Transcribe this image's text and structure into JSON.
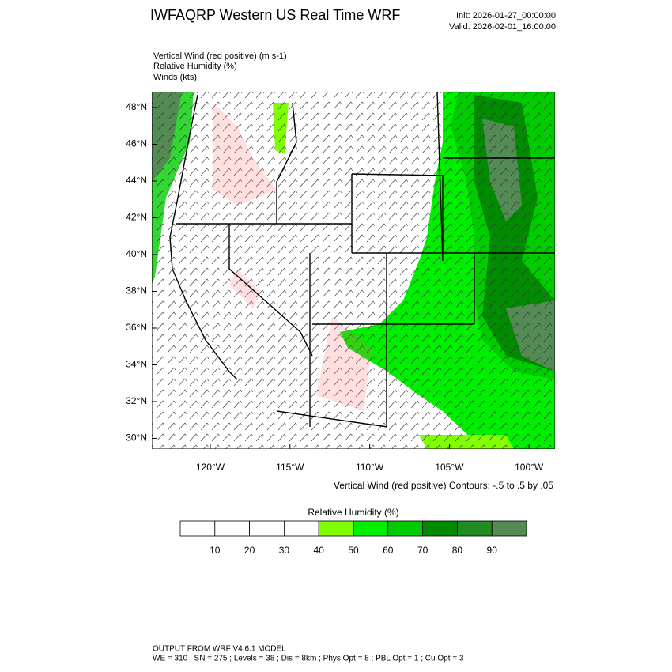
{
  "header": {
    "title": "IWFAQRP Western US Real Time WRF",
    "init": "Init: 2026-01-27_00:00:00",
    "valid": "Valid: 2026-02-01_16:00:00"
  },
  "fields": [
    "Vertical Wind (red positive)   (m s-1)",
    "Relative Humidity   (%)",
    "Winds   (kts)"
  ],
  "map": {
    "lat_labels": [
      "48°N",
      "46°N",
      "44°N",
      "42°N",
      "40°N",
      "38°N",
      "36°N",
      "34°N",
      "32°N",
      "30°N"
    ],
    "lon_labels": [
      "120°W",
      "115°W",
      "110°W",
      "105°W",
      "100°W"
    ],
    "contour_note": "Vertical Wind (red positive) Contours: -.5 to .5 by .05"
  },
  "colorbar": {
    "title": "Relative Humidity  (%)",
    "labels": [
      10,
      20,
      30,
      40,
      50,
      60,
      70,
      80,
      90
    ],
    "colors": [
      "#ffffff",
      "#ffffff",
      "#ffffff",
      "#ffffff",
      "#80ff00",
      "#00ee00",
      "#00cd00",
      "#008b00",
      "#228b22",
      "#548b54"
    ]
  },
  "footer": {
    "line1": "OUTPUT FROM WRF V4.6.1 MODEL",
    "line2": "WE = 310 ; SN = 275 ; Levels = 38 ; Dis = 8km ; Phys Opt = 8 ; PBL Opt = 1 ; Cu Opt = 3"
  }
}
